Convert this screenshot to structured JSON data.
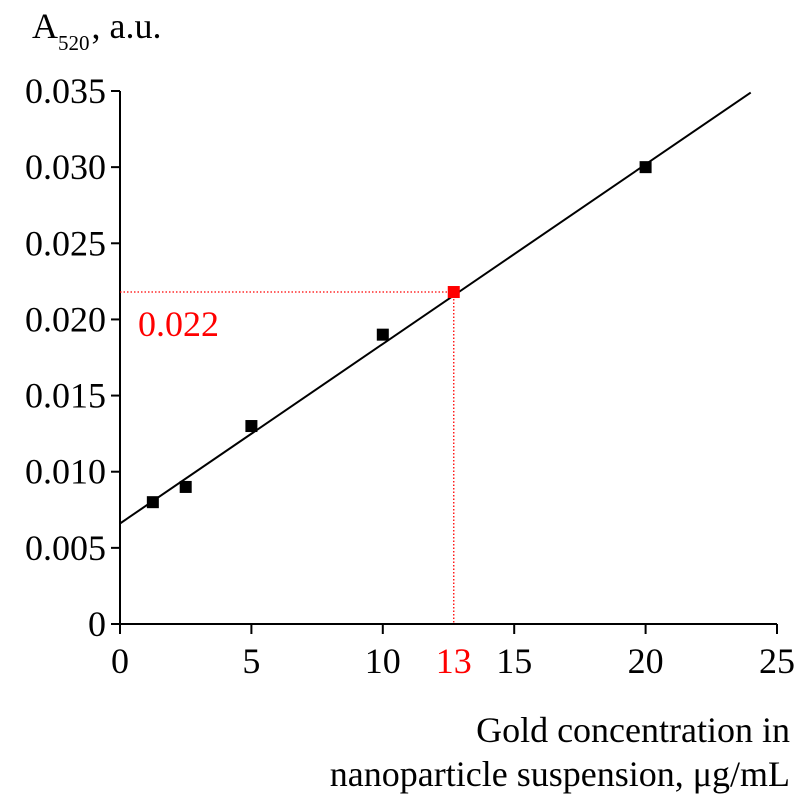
{
  "chart_data": {
    "type": "scatter",
    "ylabel_main": "A",
    "ylabel_sub": "520",
    "ylabel_rest": ", a.u.",
    "xlabel_line1": "Gold concentration in",
    "xlabel_line2": "nanoparticle suspension, μg/mL",
    "x_ticks": [
      "0",
      "5",
      "10",
      "15",
      "20",
      "25"
    ],
    "y_ticks": [
      "0",
      "0.005",
      "0.010",
      "0.015",
      "0.020",
      "0.025",
      "0.030",
      "0.035"
    ],
    "xlim": [
      0,
      25
    ],
    "ylim": [
      0,
      0.035
    ],
    "grid": false,
    "series": [
      {
        "x": [
          1.25,
          2.5,
          5,
          10,
          20
        ],
        "y": [
          0.008,
          0.009,
          0.013,
          0.019,
          0.03
        ],
        "color": "#000000",
        "marker": "square"
      }
    ],
    "fit_line": {
      "x": [
        0,
        24
      ],
      "y": [
        0.0066,
        0.0349
      ],
      "color": "#000000"
    },
    "highlight": {
      "x": 12.7,
      "y": 0.0218,
      "x_label": "13",
      "y_label": "0.022",
      "color": "#ff0000"
    }
  }
}
